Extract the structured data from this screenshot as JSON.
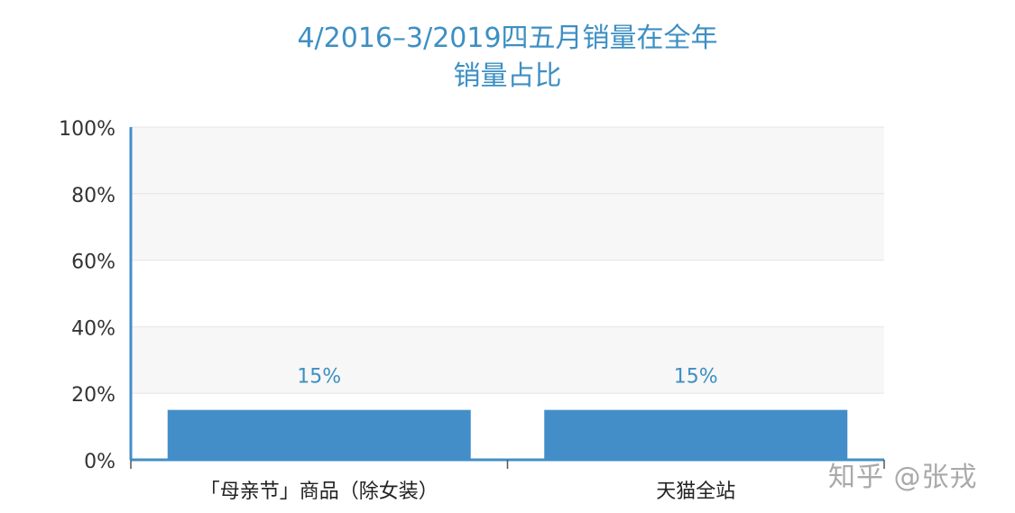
{
  "chart_data": {
    "type": "bar",
    "title": "4/2016–3/2019四五月销量在全年",
    "subtitle": "销量占比",
    "categories": [
      "「母亲节」商品（除女装）",
      "天猫全站"
    ],
    "series": [
      {
        "values": [
          15,
          15
        ]
      }
    ],
    "data_labels": [
      "15%",
      "15%"
    ],
    "ylim": [
      0,
      100
    ],
    "yticks": [
      0,
      20,
      40,
      60,
      80,
      100
    ],
    "ytick_labels": [
      "0%",
      "20%",
      "40%",
      "60%",
      "80%",
      "100%"
    ],
    "xlabel": "",
    "ylabel": "",
    "grid": true,
    "legend": "none",
    "colors": {
      "bar": "#438ec8",
      "axis": "#438ec8",
      "title": "#3d8fc3",
      "label": "#3d8fc3",
      "band": "#f7f7f7",
      "gridline": "#e6e6e6",
      "tick_text": "#333333"
    }
  },
  "watermark": "知乎 @张戎"
}
